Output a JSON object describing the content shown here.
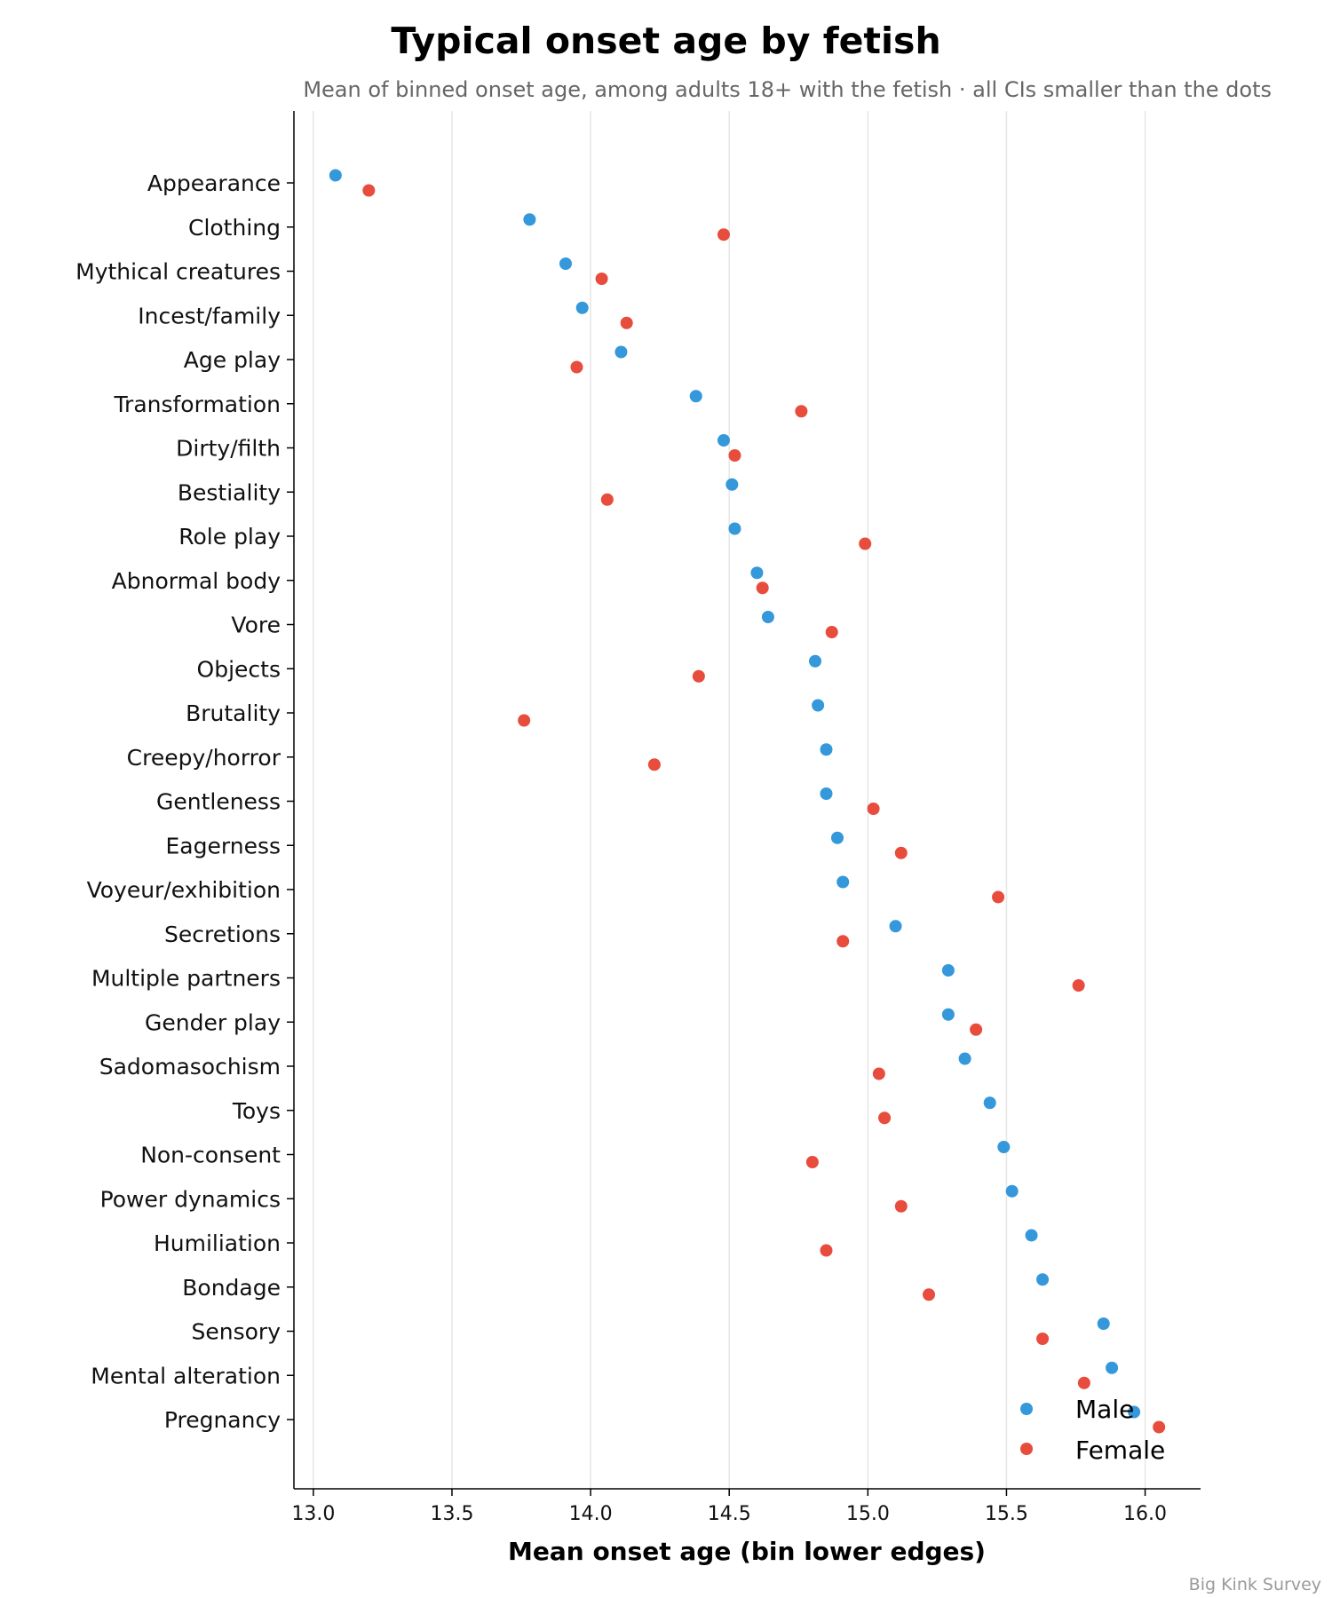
{
  "chart_data": {
    "type": "scatter",
    "title": "Typical onset age by fetish",
    "subtitle": "Mean of binned onset age, among adults 18+ with the fetish · all CIs smaller than the dots",
    "xlabel": "Mean onset age (bin lower edges)",
    "xlim": [
      12.93,
      16.2
    ],
    "xticks": [
      "13.0",
      "13.5",
      "14.0",
      "14.5",
      "15.0",
      "15.5",
      "16.0"
    ],
    "grid": "vertical",
    "legend_position": "bottom-right",
    "source": "Big Kink Survey",
    "categories": [
      "Appearance",
      "Clothing",
      "Mythical creatures",
      "Incest/family",
      "Age play",
      "Transformation",
      "Dirty/filth",
      "Bestiality",
      "Role play",
      "Abnormal body",
      "Vore",
      "Objects",
      "Brutality",
      "Creepy/horror",
      "Gentleness",
      "Eagerness",
      "Voyeur/exhibition",
      "Secretions",
      "Multiple partners",
      "Gender play",
      "Sadomasochism",
      "Toys",
      "Non-consent",
      "Power dynamics",
      "Humiliation",
      "Bondage",
      "Sensory",
      "Mental alteration",
      "Pregnancy"
    ],
    "series": [
      {
        "name": "Male",
        "color": "#3498db",
        "values": [
          13.08,
          13.78,
          13.91,
          13.97,
          14.11,
          14.38,
          14.48,
          14.51,
          14.52,
          14.6,
          14.64,
          14.81,
          14.82,
          14.85,
          14.85,
          14.89,
          14.91,
          15.1,
          15.29,
          15.29,
          15.35,
          15.44,
          15.49,
          15.52,
          15.59,
          15.63,
          15.85,
          15.88,
          15.96
        ]
      },
      {
        "name": "Female",
        "color": "#e74c3c",
        "values": [
          13.2,
          14.48,
          14.04,
          14.13,
          13.95,
          14.76,
          14.52,
          14.06,
          14.99,
          14.62,
          14.87,
          14.39,
          13.76,
          14.23,
          15.02,
          15.12,
          15.47,
          14.91,
          15.76,
          15.39,
          15.04,
          15.06,
          14.8,
          15.12,
          14.85,
          15.22,
          15.63,
          15.78,
          16.05
        ]
      }
    ]
  }
}
